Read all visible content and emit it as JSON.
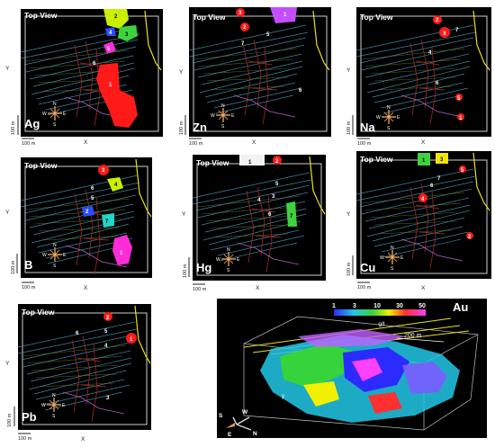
{
  "common": {
    "top_view": "Top View",
    "axis_x": "X",
    "axis_y": "Y",
    "scale_x": "100 m",
    "scale_y": "100 m",
    "compass": {
      "n": "N",
      "s": "S",
      "e": "E",
      "w": "W"
    }
  },
  "panels": [
    {
      "element": "Ag",
      "markers": [
        "2",
        "3",
        "4",
        "5",
        "6",
        "1"
      ]
    },
    {
      "element": "Zn",
      "markers": [
        "1",
        "2",
        "3",
        "5",
        "7",
        "6"
      ]
    },
    {
      "element": "Na",
      "markers": [
        "2",
        "3",
        "7",
        "4",
        "5",
        "6",
        "1"
      ]
    },
    {
      "element": "B",
      "markers": [
        "3",
        "4",
        "5",
        "6",
        "2",
        "7",
        "1"
      ]
    },
    {
      "element": "Hg",
      "markers": [
        "1",
        "2",
        "5",
        "3",
        "4",
        "6",
        "7"
      ]
    },
    {
      "element": "Cu",
      "markers": [
        "1",
        "3",
        "5",
        "7",
        "6",
        "4",
        "2"
      ]
    },
    {
      "element": "Pb",
      "markers": [
        "2",
        "1",
        "6",
        "5",
        "4",
        "3"
      ]
    }
  ],
  "au3d": {
    "element": "Au",
    "legend_ticks": [
      "1",
      "3",
      "10",
      "30",
      "50"
    ],
    "legend_unit": "g/t",
    "scale": "200 m",
    "axis_y": "y",
    "compass": {
      "s": "S",
      "w": "W",
      "e": "E",
      "n": "N"
    }
  },
  "colors": {
    "red": "#ff1a1a",
    "green": "#3fd23f",
    "magenta": "#ff2bd6",
    "blue": "#2b4cff",
    "yellow_green": "#c8f000",
    "cyan": "#20d6c8",
    "yellow": "#f2e600",
    "purple": "#b455ff"
  }
}
